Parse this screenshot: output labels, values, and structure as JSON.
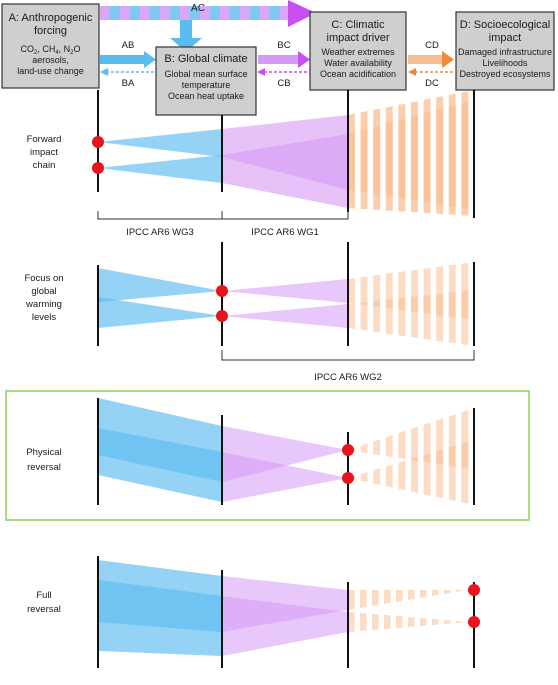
{
  "boxes": {
    "a": {
      "title_line1": "A: Anthropogenic",
      "title_line2": "forcing",
      "line1_pre": "CO",
      "line1_sub1": "2",
      "line1_mid1": ", CH",
      "line1_sub2": "4",
      "line1_mid2": ", N",
      "line1_sub3": "2",
      "line1_end": "O",
      "line2": "aerosols,",
      "line3": "land-use change"
    },
    "b": {
      "title": "B: Global climate",
      "line1": "Global mean surface",
      "line2": "temperature",
      "line3": "Ocean heat uptake"
    },
    "c": {
      "title_line1": "C: Climatic",
      "title_line2": "impact driver",
      "line1": "Weather extremes",
      "line2": "Water availability",
      "line3": "Ocean acidification"
    },
    "d": {
      "title_line1": "D: Socioecological",
      "title_line2": "impact",
      "line1": "Damaged infrastructure",
      "line2": "Livelihoods",
      "line3": "Destroyed ecosystems"
    }
  },
  "arrows": {
    "ac": "AC",
    "ab": "AB",
    "ba": "BA",
    "bc": "BC",
    "cb": "CB",
    "cd": "CD",
    "dc": "DC"
  },
  "rows": {
    "forward": {
      "line1": "Forward",
      "line2": "impact",
      "line3": "chain"
    },
    "focus": {
      "line1": "Focus on",
      "line2": "global",
      "line3": "warming",
      "line4": "levels"
    },
    "physical": {
      "line1": "Physical",
      "line2": "reversal"
    },
    "full": {
      "line1": "Full",
      "line2": "reversal"
    }
  },
  "brackets": {
    "wg3": "IPCC AR6 WG3",
    "wg1": "IPCC AR6 WG1",
    "wg2": "IPCC AR6 WG2"
  },
  "colors": {
    "blue": "#5bbcf0",
    "purple": "#d59af5",
    "orange": "#f9bf93",
    "red": "#e8141c",
    "ac_purple": "#c94ff0",
    "highlight_border": "#a8dc7f"
  }
}
